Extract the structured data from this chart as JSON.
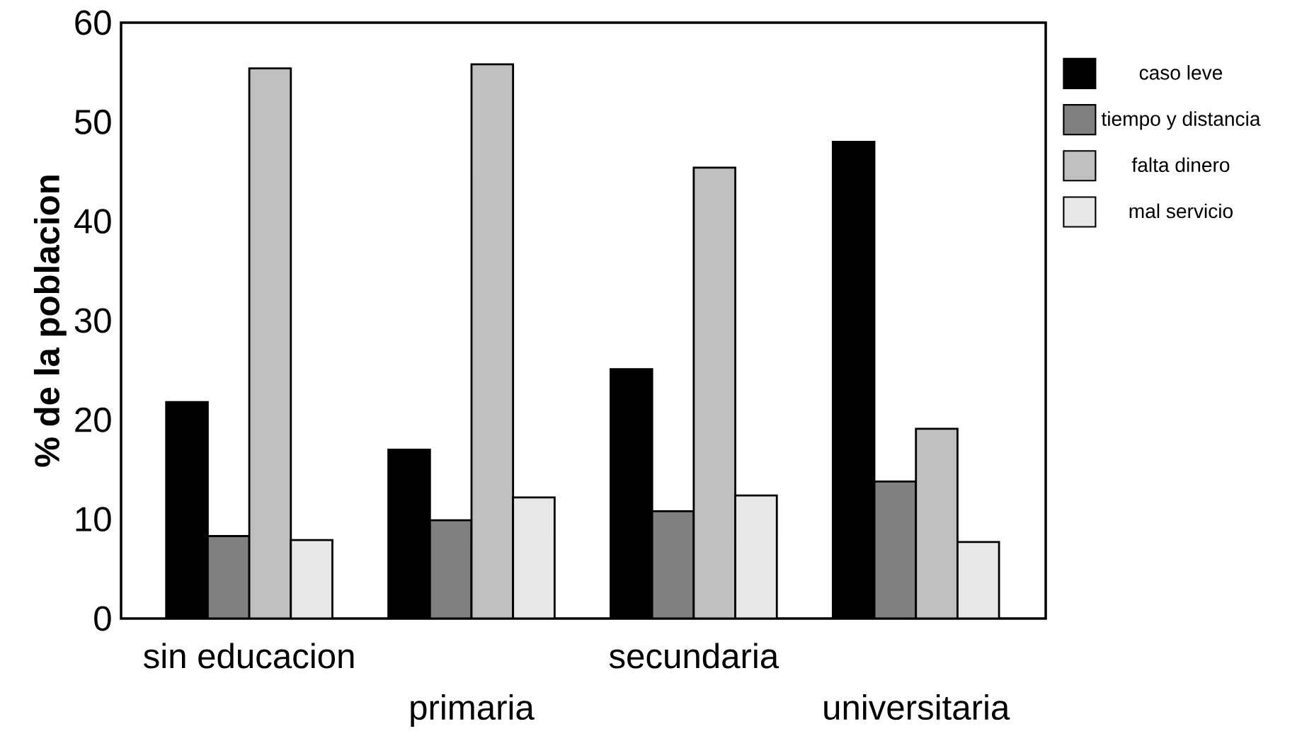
{
  "chart_data": {
    "type": "bar",
    "ylabel": "% de la poblacion",
    "categories": [
      "sin educacion",
      "primaria",
      "secundaria",
      "universitaria"
    ],
    "series": [
      {
        "name": "caso leve",
        "color": "#000000",
        "values": [
          21.8,
          17.0,
          25.1,
          48.0
        ]
      },
      {
        "name": "tiempo y distancia",
        "color": "#808080",
        "values": [
          8.3,
          9.9,
          10.8,
          13.8
        ]
      },
      {
        "name": "falta dinero",
        "color": "#c0c0c0",
        "values": [
          55.4,
          55.8,
          45.4,
          19.1
        ]
      },
      {
        "name": "mal servicio",
        "color": "#e8e8e8",
        "values": [
          7.9,
          12.2,
          12.4,
          7.7
        ]
      }
    ],
    "ylim": [
      0,
      60
    ],
    "yticks": [
      0,
      10,
      20,
      30,
      40,
      50,
      60
    ],
    "grid": false,
    "legend": "top right"
  }
}
